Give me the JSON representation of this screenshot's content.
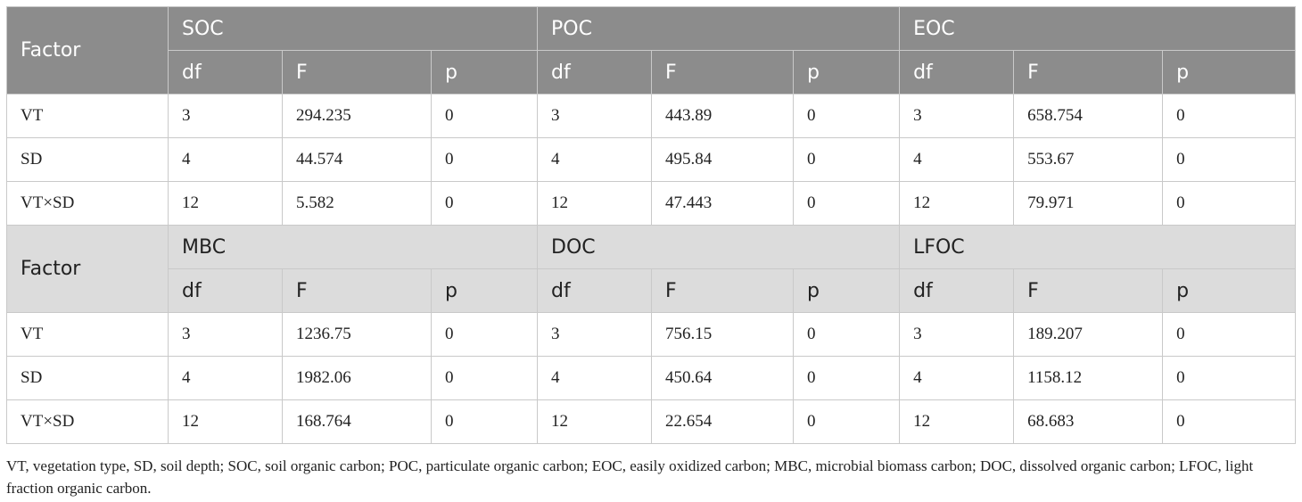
{
  "blocks": [
    {
      "factor_label": "Factor",
      "groups": [
        "SOC",
        "POC",
        "EOC"
      ],
      "subheaders": [
        "df",
        "F",
        "p"
      ],
      "rows": [
        {
          "factor": "VT",
          "cells": [
            "3",
            "294.235",
            "0",
            "3",
            "443.89",
            "0",
            "3",
            "658.754",
            "0"
          ]
        },
        {
          "factor": "SD",
          "cells": [
            "4",
            "44.574",
            "0",
            "4",
            "495.84",
            "0",
            "4",
            "553.67",
            "0"
          ]
        },
        {
          "factor": "VT×SD",
          "cells": [
            "12",
            "5.582",
            "0",
            "12",
            "47.443",
            "0",
            "12",
            "79.971",
            "0"
          ]
        }
      ]
    },
    {
      "factor_label": "Factor",
      "groups": [
        "MBC",
        "DOC",
        "LFOC"
      ],
      "subheaders": [
        "df",
        "F",
        "p"
      ],
      "rows": [
        {
          "factor": "VT",
          "cells": [
            "3",
            "1236.75",
            "0",
            "3",
            "756.15",
            "0",
            "3",
            "189.207",
            "0"
          ]
        },
        {
          "factor": "SD",
          "cells": [
            "4",
            "1982.06",
            "0",
            "4",
            "450.64",
            "0",
            "4",
            "1158.12",
            "0"
          ]
        },
        {
          "factor": "VT×SD",
          "cells": [
            "12",
            "168.764",
            "0",
            "12",
            "22.654",
            "0",
            "12",
            "68.683",
            "0"
          ]
        }
      ]
    }
  ],
  "footnote": "VT, vegetation type, SD, soil depth; SOC, soil organic carbon; POC, particulate organic carbon; EOC, easily oxidized carbon; MBC, microbial biomass carbon; DOC, dissolved organic carbon; LFOC, light fraction organic carbon."
}
